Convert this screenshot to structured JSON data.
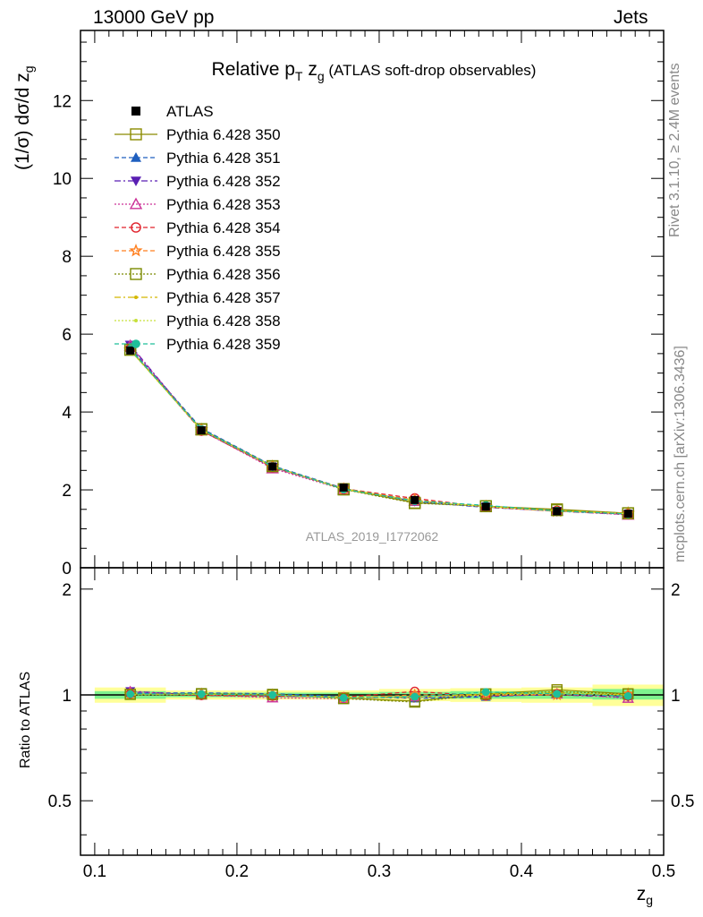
{
  "header": {
    "left": "13000 GeV pp",
    "right": "Jets"
  },
  "side_labels": {
    "rivet": "Rivet 3.1.10, ≥ 2.4M events",
    "mcplots": "mcplots.cern.ch [arXiv:1306.3436]"
  },
  "colors": {
    "data": "#000000",
    "band_inner": "#7ef28e",
    "band_outer": "#ffff99"
  },
  "chart_data": [
    {
      "type": "line",
      "title": "Relative pT zg (ATLAS soft-drop observables)",
      "ylabel": "(1/σ) dσ/d zg",
      "xlabel": "zg",
      "watermark": "ATLAS_2019_I1772062",
      "xlim": [
        0.09,
        0.5
      ],
      "ylim": [
        0,
        13.8
      ],
      "yticks": [
        0,
        2,
        4,
        6,
        8,
        10,
        12
      ],
      "legend_position": "top-left",
      "x": [
        0.125,
        0.175,
        0.225,
        0.275,
        0.325,
        0.375,
        0.425,
        0.475
      ],
      "data": {
        "name": "ATLAS",
        "values": [
          5.58,
          3.53,
          2.6,
          2.06,
          1.74,
          1.57,
          1.45,
          1.39
        ]
      },
      "series": [
        {
          "name": "Pythia 6.428 350",
          "color": "#8b8b00",
          "marker": "open-square",
          "dash": "solid",
          "values": [
            5.6,
            3.55,
            2.6,
            2.02,
            1.67,
            1.58,
            1.5,
            1.4
          ]
        },
        {
          "name": "Pythia 6.428 351",
          "color": "#1f5fbf",
          "marker": "filled-triangle-up",
          "dash": "5,3",
          "values": [
            5.65,
            3.58,
            2.62,
            2.04,
            1.7,
            1.55,
            1.46,
            1.38
          ]
        },
        {
          "name": "Pythia 6.428 352",
          "color": "#5a1fb3",
          "marker": "filled-triangle-down",
          "dash": "7,3,2,3",
          "values": [
            5.72,
            3.52,
            2.58,
            2.03,
            1.71,
            1.56,
            1.45,
            1.37
          ]
        },
        {
          "name": "Pythia 6.428 353",
          "color": "#cc3399",
          "marker": "open-triangle-up",
          "dash": "2,2",
          "values": [
            5.7,
            3.53,
            2.55,
            2.01,
            1.72,
            1.57,
            1.46,
            1.36
          ]
        },
        {
          "name": "Pythia 6.428 354",
          "color": "#e0202a",
          "marker": "open-circle",
          "dash": "5,3",
          "values": [
            5.62,
            3.52,
            2.58,
            2.03,
            1.78,
            1.56,
            1.46,
            1.38
          ]
        },
        {
          "name": "Pythia 6.428 355",
          "color": "#ff7f1f",
          "marker": "open-star",
          "dash": "5,3",
          "values": [
            5.6,
            3.55,
            2.6,
            2.02,
            1.74,
            1.57,
            1.45,
            1.4
          ]
        },
        {
          "name": "Pythia 6.428 356",
          "color": "#7a8a00",
          "marker": "open-square",
          "dash": "2,2",
          "values": [
            5.6,
            3.56,
            2.61,
            2.01,
            1.66,
            1.58,
            1.48,
            1.4
          ]
        },
        {
          "name": "Pythia 6.428 357",
          "color": "#d4b800",
          "marker": "small-dot",
          "dash": "7,3,2,3",
          "values": [
            5.59,
            3.54,
            2.6,
            2.03,
            1.72,
            1.58,
            1.47,
            1.39
          ]
        },
        {
          "name": "Pythia 6.428 358",
          "color": "#c6e03a",
          "marker": "small-dot",
          "dash": "2,2",
          "values": [
            5.58,
            3.54,
            2.6,
            2.02,
            1.71,
            1.57,
            1.46,
            1.39
          ]
        },
        {
          "name": "Pythia 6.428 359",
          "color": "#1fbf9a",
          "marker": "filled-circle",
          "dash": "5,3",
          "values": [
            5.61,
            3.55,
            2.6,
            2.02,
            1.72,
            1.6,
            1.46,
            1.38
          ]
        }
      ]
    },
    {
      "type": "line",
      "ylabel": "Ratio to ATLAS",
      "xlabel": "zg",
      "xlim": [
        0.09,
        0.5
      ],
      "ylim": [
        0.35,
        2.3
      ],
      "log_y": true,
      "yticks": [
        0.5,
        1,
        2
      ],
      "xticks": [
        0.1,
        0.2,
        0.3,
        0.4,
        0.5
      ],
      "band_inner": [
        {
          "x0": 0.1,
          "x1": 0.15,
          "lo": 0.975,
          "hi": 1.025
        },
        {
          "x0": 0.15,
          "x1": 0.2,
          "lo": 0.985,
          "hi": 1.015
        },
        {
          "x0": 0.2,
          "x1": 0.25,
          "lo": 0.985,
          "hi": 1.015
        },
        {
          "x0": 0.25,
          "x1": 0.3,
          "lo": 0.985,
          "hi": 1.015
        },
        {
          "x0": 0.3,
          "x1": 0.35,
          "lo": 0.98,
          "hi": 1.02
        },
        {
          "x0": 0.35,
          "x1": 0.4,
          "lo": 0.975,
          "hi": 1.025
        },
        {
          "x0": 0.4,
          "x1": 0.45,
          "lo": 0.975,
          "hi": 1.025
        },
        {
          "x0": 0.45,
          "x1": 0.5,
          "lo": 0.97,
          "hi": 1.04
        }
      ],
      "band_outer": [
        {
          "x0": 0.1,
          "x1": 0.15,
          "lo": 0.95,
          "hi": 1.05
        },
        {
          "x0": 0.15,
          "x1": 0.2,
          "lo": 0.97,
          "hi": 1.03
        },
        {
          "x0": 0.2,
          "x1": 0.25,
          "lo": 0.97,
          "hi": 1.03
        },
        {
          "x0": 0.25,
          "x1": 0.3,
          "lo": 0.97,
          "hi": 1.03
        },
        {
          "x0": 0.3,
          "x1": 0.35,
          "lo": 0.96,
          "hi": 1.04
        },
        {
          "x0": 0.35,
          "x1": 0.4,
          "lo": 0.955,
          "hi": 1.045
        },
        {
          "x0": 0.4,
          "x1": 0.45,
          "lo": 0.95,
          "hi": 1.05
        },
        {
          "x0": 0.45,
          "x1": 0.5,
          "lo": 0.93,
          "hi": 1.07
        }
      ]
    }
  ]
}
